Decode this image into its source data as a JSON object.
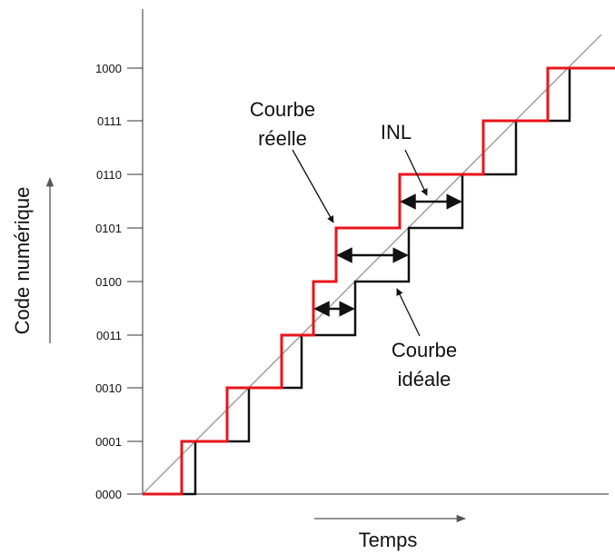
{
  "figure": {
    "y_axis_title": "Code numérique",
    "x_axis_title": "Temps",
    "y_ticks": [
      "0000",
      "0001",
      "0010",
      "0011",
      "0100",
      "0101",
      "0110",
      "0111",
      "1000"
    ],
    "labels": {
      "reelle_line1": "Courbe",
      "reelle_line2": "réelle",
      "ideale_line1": "Courbe",
      "ideale_line2": "idéale",
      "inl": "INL"
    },
    "colors": {
      "real_curve": "#e8141b",
      "ideal_curve": "#111111",
      "diagonal": "#a0a0a0",
      "axis": "#555555",
      "arrow": "#111111"
    },
    "icons": [
      "y-axis-arrow-icon",
      "x-axis-arrow-icon",
      "inl-double-arrow-icon"
    ]
  }
}
